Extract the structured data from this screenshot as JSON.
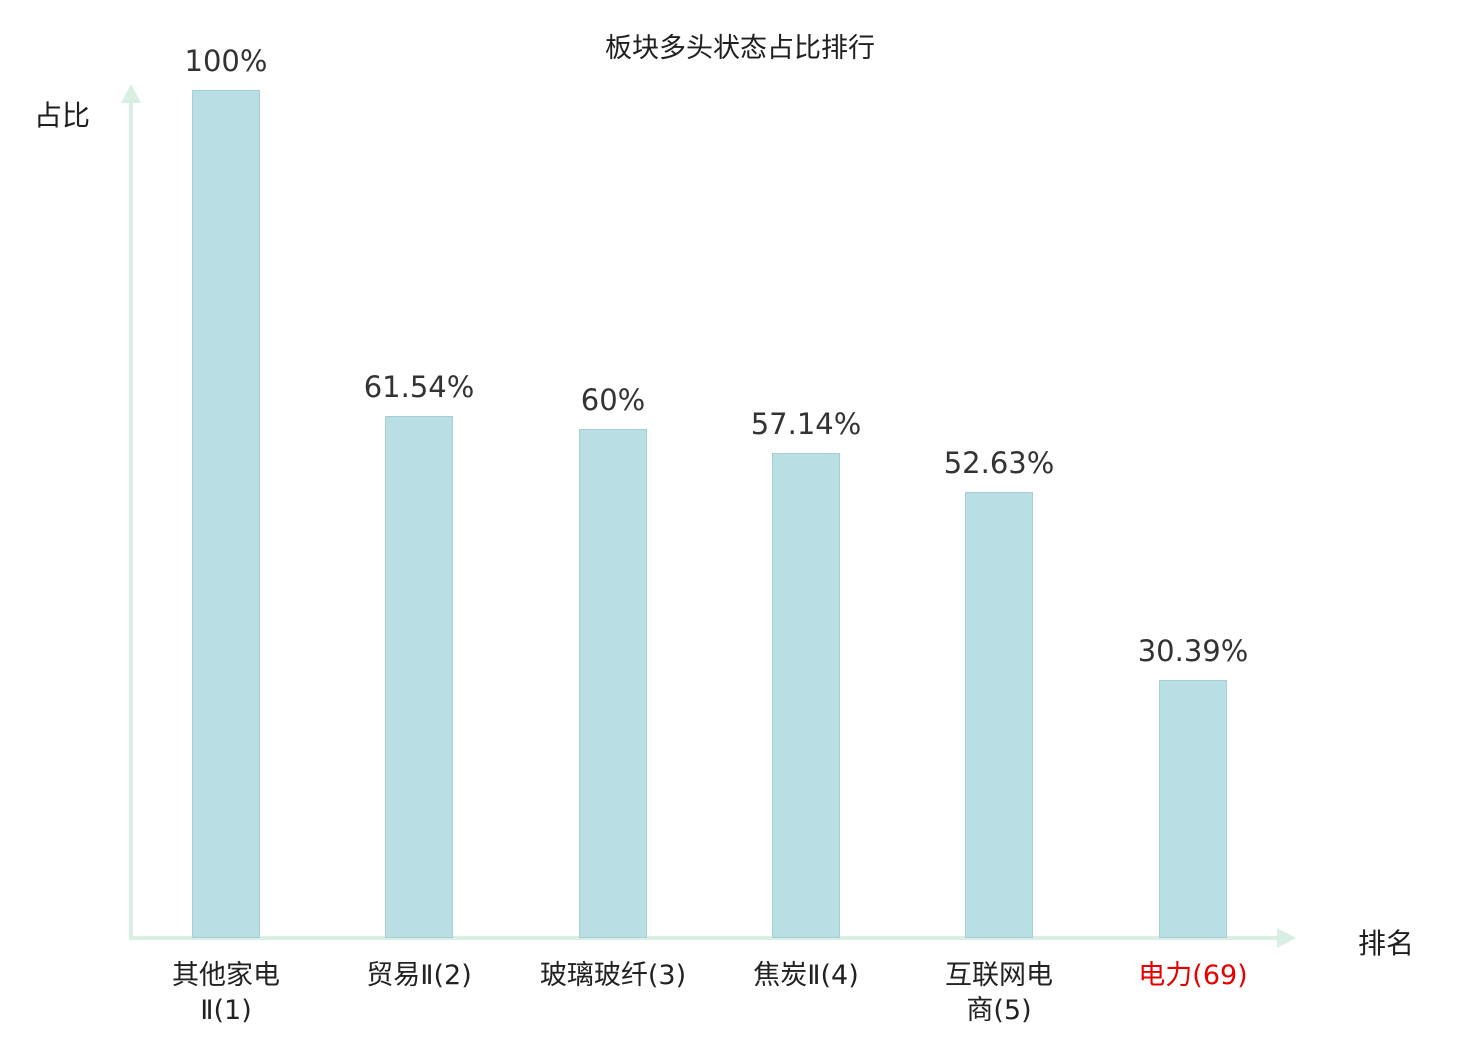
{
  "chart_data": {
    "type": "bar",
    "title": "板块多头状态占比排行",
    "xlabel": "排名",
    "ylabel": "占比",
    "ylim": [
      0,
      100
    ],
    "categories": [
      "其他家电Ⅱ(1)",
      "贸易Ⅱ(2)",
      "玻璃玻纤(3)",
      "焦炭Ⅱ(4)",
      "互联网电商(5)",
      "电力(69)"
    ],
    "category_lines": [
      [
        "其他家电",
        "Ⅱ(1)"
      ],
      [
        "贸易Ⅱ(2)"
      ],
      [
        "玻璃玻纤(3)"
      ],
      [
        "焦炭Ⅱ(4)"
      ],
      [
        "互联网电",
        "商(5)"
      ],
      [
        "电力(69)"
      ]
    ],
    "values": [
      100,
      61.54,
      60,
      57.14,
      52.63,
      30.39
    ],
    "value_labels": [
      "100%",
      "61.54%",
      "60%",
      "57.14%",
      "52.63%",
      "30.39%"
    ],
    "highlight_index": 5,
    "colors": {
      "bar_fill": "#b9dee3",
      "bar_border": "#a5ced5",
      "axis": "#d9efe3",
      "text": "#333333",
      "highlight": "#e60000"
    },
    "grid": false,
    "legend": null
  }
}
